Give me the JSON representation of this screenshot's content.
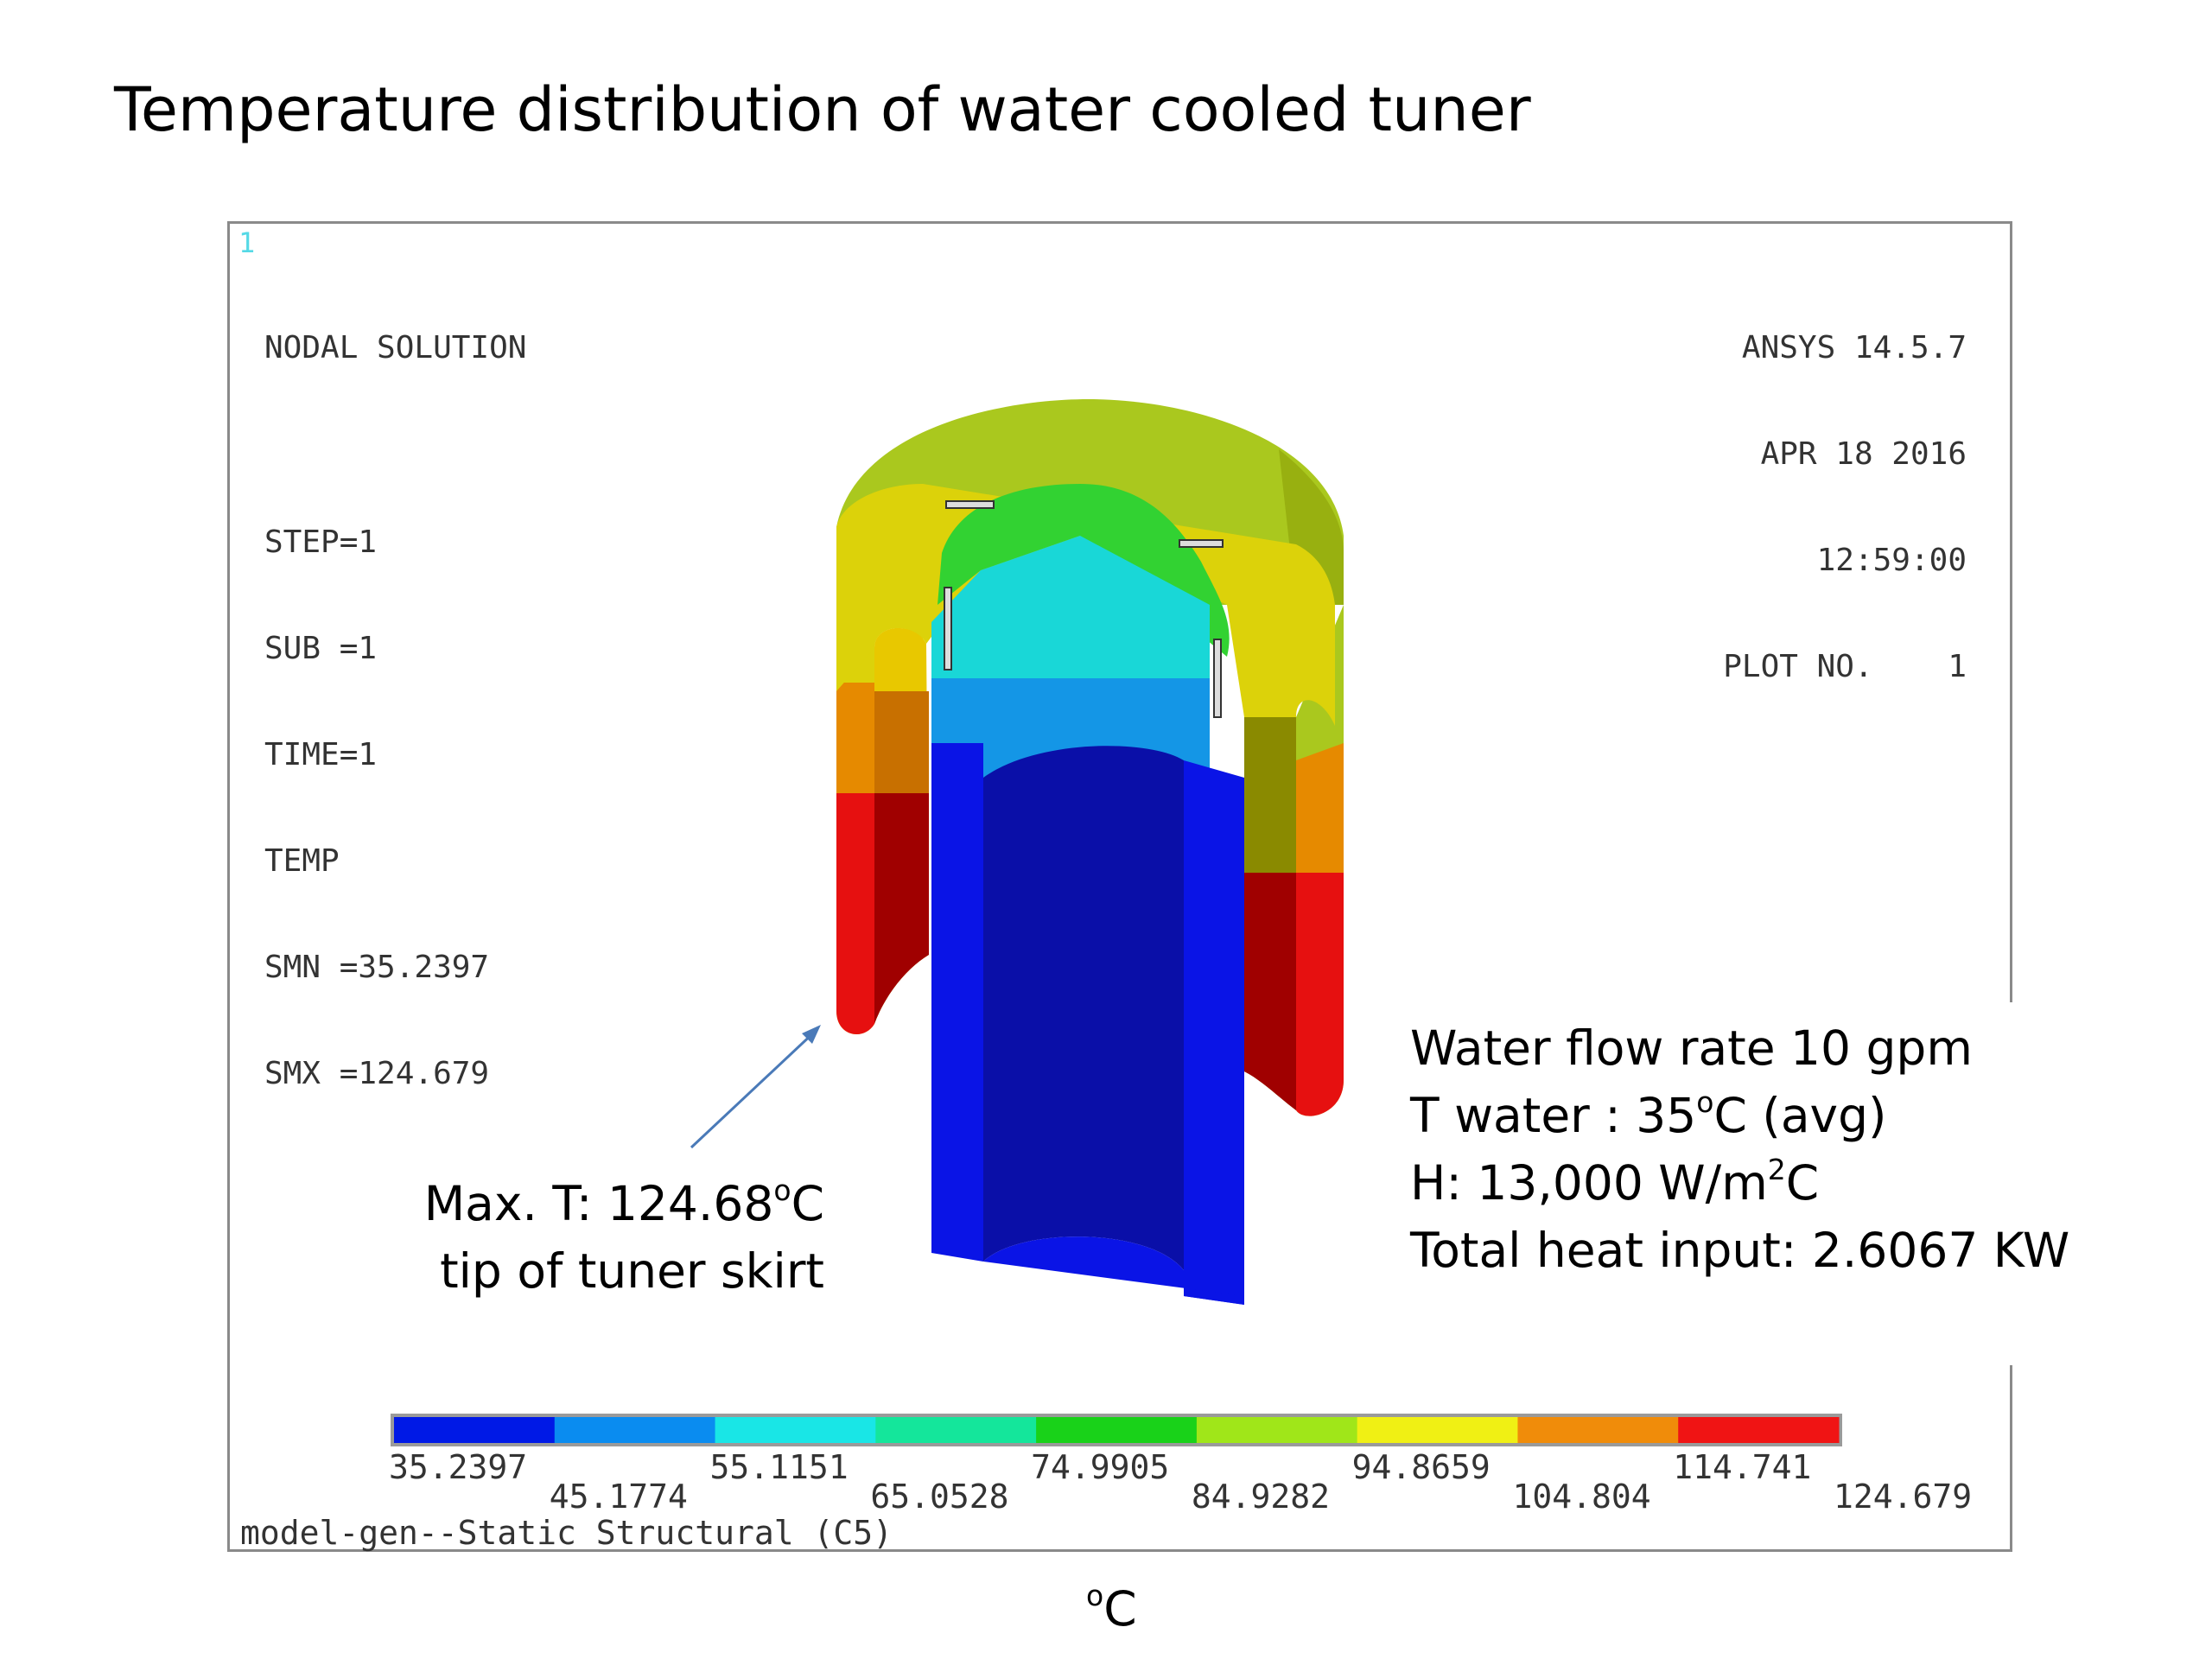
{
  "title": "Temperature distribution of water cooled tuner",
  "plot": {
    "index": "1",
    "info_lines": [
      "NODAL SOLUTION",
      "STEP=1",
      "SUB =1",
      "TIME=1",
      "TEMP",
      "SMN =35.2397",
      "SMX =124.679"
    ],
    "version_lines": [
      "ANSYS 14.5.7",
      "APR 18 2016",
      "12:59:00",
      "PLOT NO.    1"
    ],
    "footer": "model-gen--Static Structural (C5)"
  },
  "annotations": {
    "max_t_prefix": "Max. T: 124.68",
    "max_t_degree": "o",
    "max_t_unit": "C",
    "max_t_location": "tip of tuner skirt",
    "water_flow": "Water flow rate 10 gpm",
    "t_water_prefix": "T water : 35",
    "t_water_degree": "o",
    "t_water_suffix": "C (avg)",
    "h_prefix": "H: 13,000 W/m",
    "h_sup": "2",
    "h_suffix": "C",
    "total_heat": "Total heat input: 2.6067 KW"
  },
  "scale": {
    "labels": [
      "35.2397",
      "45.1774",
      "55.1151",
      "65.0528",
      "74.9905",
      "84.9282",
      "94.8659",
      "104.804",
      "114.741",
      "124.679"
    ],
    "colors": [
      "#0019e6",
      "#0a8cf0",
      "#19e6e6",
      "#14e69b",
      "#19d219",
      "#a0e619",
      "#f0f014",
      "#f08c0a",
      "#f01414"
    ],
    "unit_degree": "o",
    "unit": "C"
  },
  "colors": {
    "dark_red": "#a00000",
    "red": "#e61010",
    "orange": "#e68a00",
    "yellow": "#dcd20a",
    "yellow_green": "#aac81e",
    "green": "#32d232",
    "cyan": "#19d7d7",
    "light_blue": "#1496e6",
    "blue": "#0a14e6",
    "dark_blue": "#0a0fa8",
    "arrow": "#4a7ab8"
  }
}
